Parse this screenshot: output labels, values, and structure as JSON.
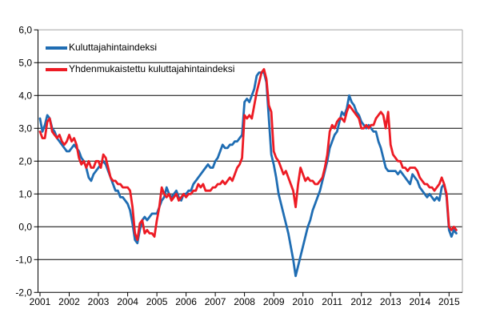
{
  "chart_data": {
    "type": "line",
    "title": "",
    "x_axis": {
      "frequency": "monthly",
      "start_year": 2001,
      "tick_labels": [
        "2001",
        "2002",
        "2003",
        "2004",
        "2005",
        "2006",
        "2007",
        "2008",
        "2009",
        "2010",
        "2011",
        "2012",
        "2013",
        "2014",
        "2015"
      ]
    },
    "y_axis": {
      "min": -2,
      "max": 6,
      "tick_values": [
        6,
        5,
        4,
        3,
        2,
        1,
        0,
        -1,
        -2
      ],
      "tick_labels": [
        "6,0",
        "5,0",
        "4,0",
        "3,0",
        "2,0",
        "1,0",
        "0,0",
        "-1,0",
        "-2,0"
      ]
    },
    "grid": true,
    "legend_position": "top-left",
    "colors": {
      "background": "#FFFFFF",
      "gridline": "#000000",
      "axis": "#000000",
      "border": "#A6A6A6",
      "text": "#000000"
    },
    "series": [
      {
        "name": "Kuluttajahintaindeksi",
        "color": "#1F6DB3",
        "values": [
          3.3,
          2.9,
          3.1,
          3.4,
          3.3,
          3.0,
          2.9,
          2.7,
          2.6,
          2.5,
          2.4,
          2.3,
          2.3,
          2.4,
          2.5,
          2.4,
          2.3,
          2.1,
          2.0,
          1.8,
          1.5,
          1.4,
          1.6,
          1.7,
          1.8,
          1.9,
          2.0,
          1.9,
          1.7,
          1.5,
          1.3,
          1.1,
          1.1,
          0.9,
          0.9,
          0.8,
          0.7,
          0.5,
          0.1,
          -0.4,
          -0.5,
          -0.1,
          0.2,
          0.3,
          0.2,
          0.3,
          0.4,
          0.4,
          0.4,
          0.6,
          0.8,
          0.9,
          1.2,
          1.0,
          0.9,
          1.0,
          1.1,
          0.9,
          0.8,
          1.0,
          1.0,
          1.1,
          1.1,
          1.3,
          1.4,
          1.5,
          1.6,
          1.7,
          1.8,
          1.9,
          1.8,
          1.8,
          2.0,
          2.1,
          2.3,
          2.5,
          2.4,
          2.4,
          2.5,
          2.5,
          2.6,
          2.6,
          2.7,
          2.8,
          3.8,
          3.9,
          3.8,
          4.0,
          4.2,
          4.6,
          4.7,
          4.7,
          4.7,
          4.4,
          3.3,
          2.2,
          1.9,
          1.5,
          1.0,
          0.7,
          0.4,
          0.1,
          -0.2,
          -0.6,
          -1.0,
          -1.5,
          -1.2,
          -0.9,
          -0.6,
          -0.3,
          0.0,
          0.2,
          0.5,
          0.7,
          0.9,
          1.1,
          1.4,
          1.7,
          2.0,
          2.4,
          2.6,
          2.8,
          2.9,
          3.2,
          3.5,
          3.4,
          3.6,
          4.0,
          3.8,
          3.7,
          3.5,
          3.4,
          3.2,
          3.1,
          3.0,
          3.1,
          3.0,
          2.9,
          2.9,
          2.6,
          2.4,
          2.1,
          1.8,
          1.7,
          1.7,
          1.7,
          1.7,
          1.6,
          1.7,
          1.6,
          1.5,
          1.4,
          1.3,
          1.6,
          1.5,
          1.4,
          1.2,
          1.1,
          1.0,
          0.9,
          1.0,
          0.9,
          0.8,
          0.9,
          0.8,
          1.2,
          1.3,
          0.9,
          -0.1,
          -0.3,
          -0.1,
          -0.2
        ]
      },
      {
        "name": "Yhdenmukaistettu kuluttajahintaindeksi",
        "color": "#ED1B24",
        "values": [
          2.9,
          2.7,
          2.7,
          3.2,
          3.3,
          2.9,
          2.8,
          2.7,
          2.8,
          2.6,
          2.5,
          2.6,
          2.8,
          2.6,
          2.7,
          2.5,
          2.1,
          1.9,
          2.0,
          1.8,
          2.0,
          1.8,
          1.8,
          2.0,
          2.0,
          1.8,
          2.2,
          2.1,
          1.8,
          1.5,
          1.4,
          1.4,
          1.3,
          1.3,
          1.2,
          1.2,
          1.2,
          1.1,
          0.6,
          -0.2,
          -0.4,
          0.1,
          0.2,
          -0.2,
          -0.1,
          -0.2,
          -0.2,
          -0.3,
          0.2,
          0.6,
          1.2,
          1.0,
          0.9,
          1.0,
          0.8,
          0.9,
          1.0,
          0.8,
          0.9,
          1.0,
          0.9,
          1.0,
          1.0,
          1.1,
          1.1,
          1.3,
          1.2,
          1.3,
          1.1,
          1.1,
          1.1,
          1.2,
          1.2,
          1.3,
          1.3,
          1.4,
          1.3,
          1.4,
          1.5,
          1.4,
          1.6,
          1.8,
          1.9,
          2.1,
          3.4,
          3.3,
          3.4,
          3.3,
          3.7,
          4.1,
          4.4,
          4.7,
          4.8,
          4.5,
          3.7,
          3.5,
          2.3,
          2.1,
          2.0,
          1.8,
          1.6,
          1.7,
          1.5,
          1.3,
          1.1,
          0.6,
          1.3,
          1.8,
          1.6,
          1.4,
          1.5,
          1.4,
          1.4,
          1.3,
          1.3,
          1.4,
          1.5,
          1.8,
          2.2,
          2.9,
          3.1,
          3.0,
          3.2,
          3.3,
          3.3,
          3.2,
          3.5,
          3.7,
          3.6,
          3.5,
          3.4,
          3.3,
          3.0,
          3.0,
          3.1,
          3.0,
          3.1,
          3.1,
          3.3,
          3.4,
          3.5,
          3.4,
          3.0,
          3.5,
          2.5,
          2.2,
          2.1,
          2.0,
          2.0,
          1.8,
          1.8,
          1.7,
          1.8,
          1.8,
          1.8,
          1.7,
          1.5,
          1.4,
          1.3,
          1.3,
          1.2,
          1.2,
          1.1,
          1.2,
          1.3,
          1.5,
          1.3,
          1.0,
          0.0,
          -0.1,
          0.0,
          -0.1
        ]
      }
    ]
  }
}
